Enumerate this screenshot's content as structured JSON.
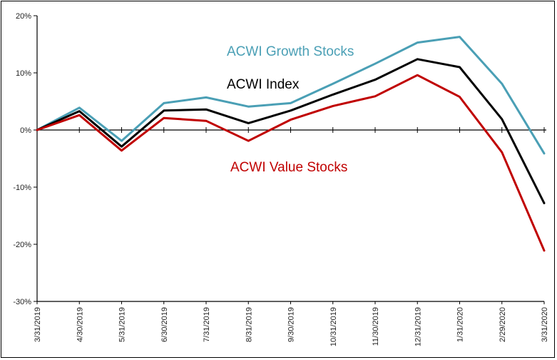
{
  "chart_data": {
    "type": "line",
    "title": "",
    "xlabel": "",
    "ylabel": "",
    "x": [
      "3/31/2019",
      "4/30/2019",
      "5/31/2019",
      "6/30/2019",
      "7/31/2019",
      "8/31/2019",
      "9/30/2019",
      "10/31/2019",
      "11/30/2019",
      "12/31/2019",
      "1/31/2020",
      "2/29/2020",
      "3/31/2020"
    ],
    "ylim": [
      -30,
      20
    ],
    "yticks": [
      -30,
      -20,
      -10,
      0,
      10,
      20
    ],
    "ytick_labels": [
      "-30%",
      "-20%",
      "-10%",
      "0%",
      "10%",
      "20%"
    ],
    "grid": false,
    "series": [
      {
        "name": "ACWI Growth Stocks",
        "color": "#4a9fb5",
        "values": [
          0,
          3.9,
          -1.9,
          4.7,
          5.7,
          4.1,
          4.7,
          8.1,
          11.6,
          15.3,
          16.3,
          8.1,
          -4.1
        ]
      },
      {
        "name": "ACWI Index",
        "color": "#000000",
        "values": [
          0,
          3.3,
          -2.9,
          3.4,
          3.6,
          1.2,
          3.4,
          6.2,
          8.8,
          12.4,
          11.0,
          1.9,
          -12.8
        ]
      },
      {
        "name": "ACWI Value Stocks",
        "color": "#c00000",
        "values": [
          0,
          2.6,
          -3.6,
          2.1,
          1.6,
          -1.9,
          1.8,
          4.2,
          5.9,
          9.6,
          5.8,
          -3.9,
          -21.1
        ]
      }
    ]
  }
}
